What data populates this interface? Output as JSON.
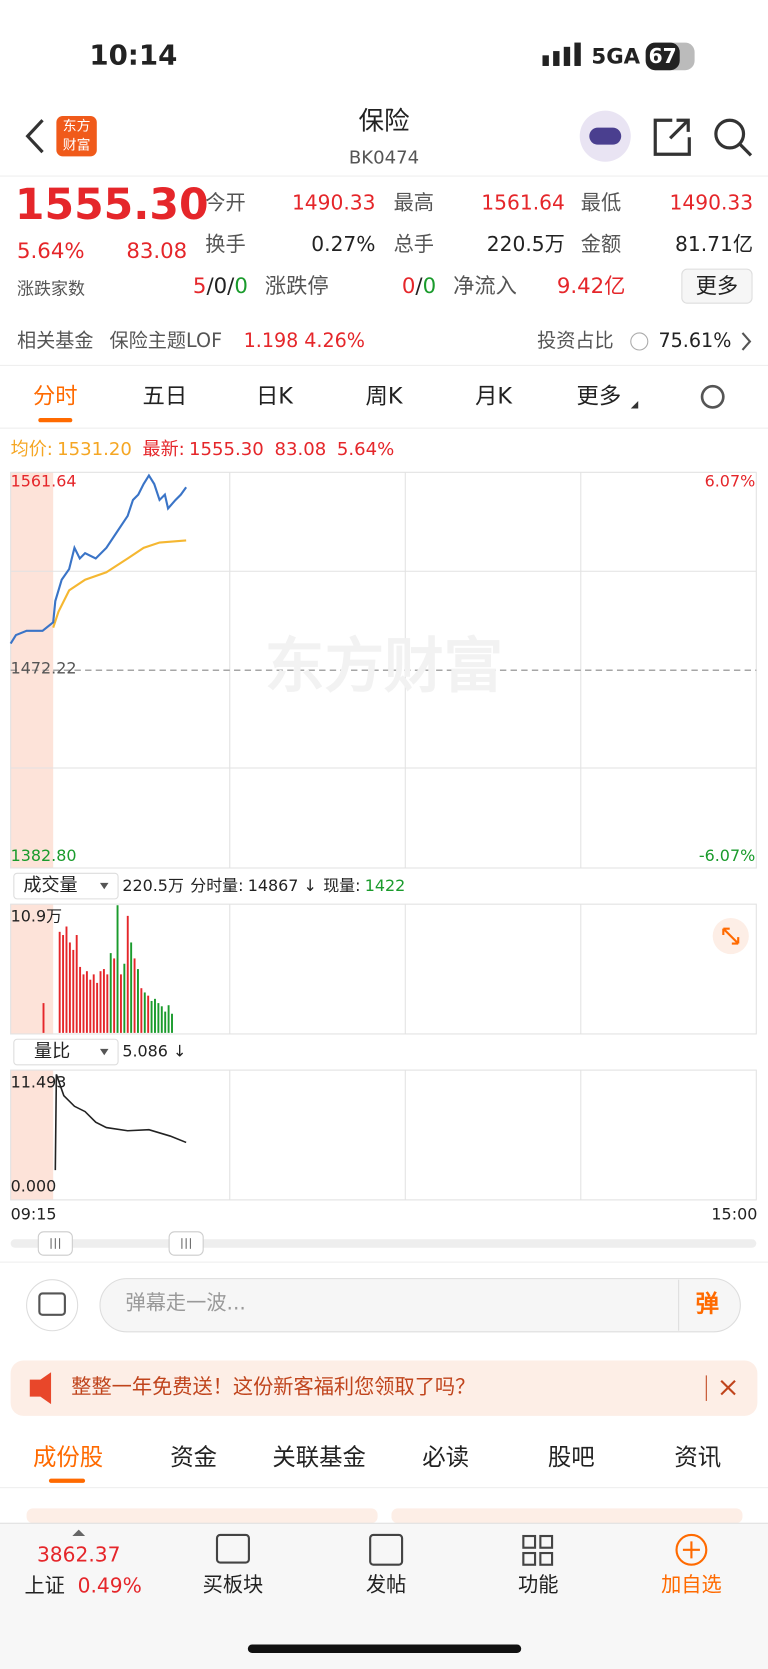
{
  "status_bar": {
    "time": "10:14",
    "network": "5GA",
    "battery": "67"
  },
  "header": {
    "logo_top": "东方",
    "logo_bottom": "财富",
    "title": "保险",
    "code": "BK0474"
  },
  "quote": {
    "price": "1555.30",
    "change_pct": "5.64%",
    "change": "83.08",
    "fields": [
      {
        "label": "今开",
        "value": "1490.33"
      },
      {
        "label": "最高",
        "value": "1561.64"
      },
      {
        "label": "最低",
        "value": "1490.33"
      },
      {
        "label": "换手",
        "value": "0.27%"
      },
      {
        "label": "总手",
        "value": "220.5万"
      },
      {
        "label": "金额",
        "value": "81.71亿"
      }
    ],
    "breadth": {
      "label": "涨跌家数",
      "rise": "5",
      "flat": "0",
      "fall": "0",
      "separator": "/"
    },
    "limit": {
      "label": "涨跌停",
      "up": "0",
      "down": "0"
    },
    "net_inflow": {
      "label": "净流入",
      "value": "9.42亿"
    },
    "more": "更多"
  },
  "fund": {
    "label": "相关基金",
    "name": "保险主题LOF",
    "price": "1.198",
    "pct": "4.26%",
    "ratio_label": "投资占比",
    "ratio": "75.61%"
  },
  "chart_tabs": [
    "分时",
    "五日",
    "日K",
    "周K",
    "月K",
    "更多"
  ],
  "intraday": {
    "avg_label": "均价:",
    "avg": "1531.20",
    "latest_label": "最新:",
    "latest": "1555.30",
    "change": "83.08",
    "pct": "5.64%",
    "y_high": "1561.64",
    "y_mid": "1472.22",
    "y_low": "1382.80",
    "pct_high": "6.07%",
    "pct_low": "-6.07%",
    "watermark": "东方财富"
  },
  "volume": {
    "selector": "成交量",
    "total": "220.5万",
    "minute_label": "分时量:",
    "minute": "14867 ↓",
    "now_label": "现量:",
    "now": "1422",
    "max": "10.9万"
  },
  "volume_ratio": {
    "selector": "量比",
    "value": "5.086 ↓",
    "max": "11.493",
    "min": "0.000"
  },
  "time_axis": {
    "start": "09:15",
    "end": "15:00"
  },
  "comment": {
    "placeholder": "弹幕走一波...",
    "button": "弹"
  },
  "banner": {
    "text": "整整一年免费送！这份新客福利您领取了吗？"
  },
  "bottom_tabs": [
    "成份股",
    "资金",
    "关联基金",
    "必读",
    "股吧",
    "资讯"
  ],
  "nav": {
    "index_value": "3862.37",
    "index_name": "上证",
    "index_pct": "0.49%",
    "items": [
      "买板块",
      "发帖",
      "功能",
      "加自选"
    ]
  }
}
